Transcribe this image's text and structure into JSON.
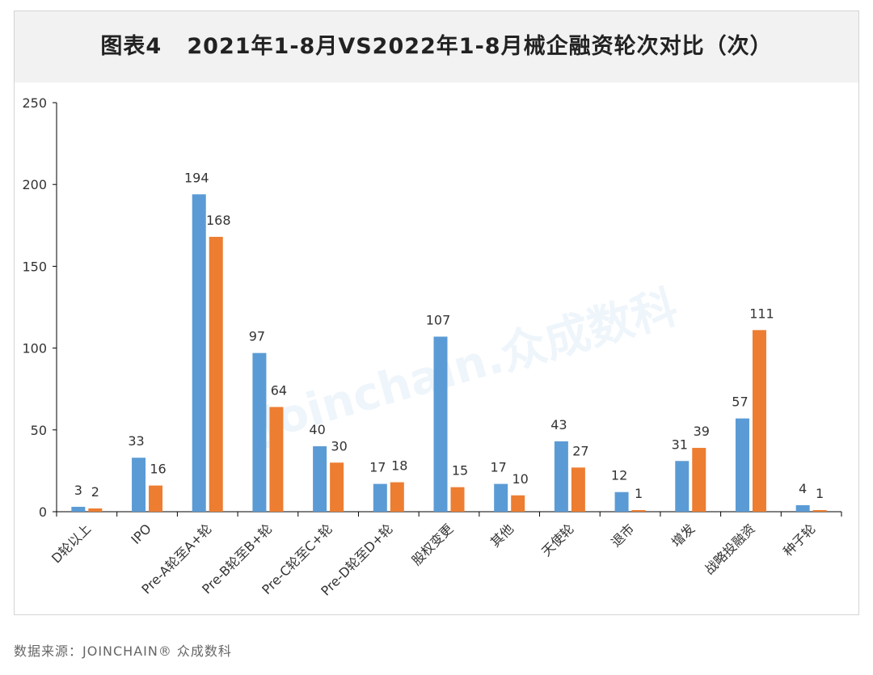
{
  "title": "图表4   2021年1-8月VS2022年1-8月械企融资轮次对比（次）",
  "source": "数据来源：JOINCHAIN® 众成数科",
  "watermark": "Joinchain.众成数科",
  "colors": {
    "series_2021": "#5b9bd5",
    "series_2022": "#ed7d31",
    "axis": "#000000",
    "label": "#333333"
  },
  "chart_data": {
    "type": "bar",
    "title": "图表4   2021年1-8月VS2022年1-8月械企融资轮次对比（次）",
    "xlabel": "",
    "ylabel": "",
    "ylim": [
      0,
      250
    ],
    "yticks": [
      0,
      50,
      100,
      150,
      200,
      250
    ],
    "grid": false,
    "categories": [
      "D轮以上",
      "IPO",
      "Pre-A轮至A+轮",
      "Pre-B轮至B+轮",
      "Pre-C轮至C+轮",
      "Pre-D轮至D+轮",
      "股权变更",
      "其他",
      "天使轮",
      "退市",
      "增发",
      "战略投融资",
      "种子轮"
    ],
    "series": [
      {
        "name": "2021年1-8月",
        "values": [
          3,
          33,
          194,
          97,
          40,
          17,
          107,
          17,
          43,
          12,
          31,
          57,
          4
        ]
      },
      {
        "name": "2022年1-8月",
        "values": [
          2,
          16,
          168,
          64,
          30,
          18,
          15,
          10,
          27,
          1,
          39,
          111,
          1
        ]
      }
    ]
  }
}
